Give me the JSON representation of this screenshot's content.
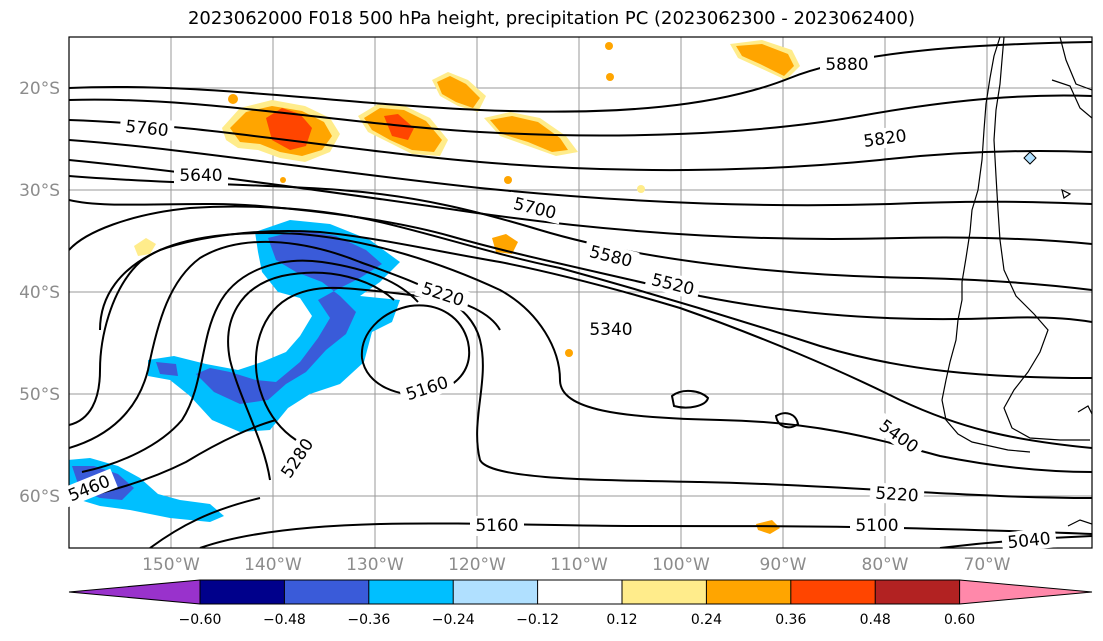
{
  "title": "2023062000 F018 500 hPa height, precipitation PC (2023062300 - 2023062400)",
  "map": {
    "lat_labels": [
      "20°S",
      "30°S",
      "40°S",
      "50°S",
      "60°S"
    ],
    "lon_labels": [
      "150°W",
      "140°W",
      "130°W",
      "120°W",
      "110°W",
      "100°W",
      "90°W",
      "80°W",
      "70°W"
    ],
    "contour_labels": [
      "5880",
      "5820",
      "5760",
      "5700",
      "5640",
      "5580",
      "5520",
      "5460",
      "5400",
      "5340",
      "5280",
      "5220",
      "5220",
      "5160",
      "5160",
      "5100",
      "5040"
    ],
    "positive_anomaly_color": "#ffa500",
    "strong_positive_color": "#ff4500",
    "negative_anomaly_color": "#00bfff",
    "strong_negative_color": "#3a5bd9"
  },
  "colorbar": {
    "ticks": [
      "−0.60",
      "−0.48",
      "−0.36",
      "−0.24",
      "−0.12",
      "0.12",
      "0.24",
      "0.36",
      "0.48",
      "0.60"
    ],
    "colors": [
      "#9932cc",
      "#00008b",
      "#3a5bd9",
      "#00bfff",
      "#b0e0ff",
      "#ffffff",
      "#ffec8b",
      "#ffa500",
      "#ff4500",
      "#b22222",
      "#ff88aa"
    ]
  }
}
